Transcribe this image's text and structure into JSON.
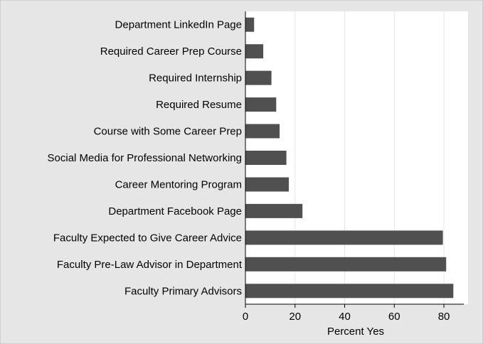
{
  "chart_data": {
    "type": "bar",
    "orientation": "horizontal",
    "categories": [
      "Department LinkedIn Page",
      "Required Career Prep Course",
      "Required Internship",
      "Required Resume",
      "Course with Some Career Prep",
      "Social Media for Professional Networking",
      "Career Mentoring Program",
      "Department Facebook Page",
      "Faculty Expected to Give Career Advice",
      "Faculty Pre-Law Advisor in Department",
      "Faculty Primary Advisors"
    ],
    "values": [
      3.5,
      7.2,
      10.5,
      12.4,
      13.8,
      16.5,
      17.5,
      23.0,
      79.6,
      80.9,
      83.8
    ],
    "title": "",
    "xlabel": "Percent Yes",
    "ylabel": "",
    "xlim": [
      0,
      88
    ],
    "xticks": [
      0,
      20,
      40,
      60,
      80
    ],
    "grid": "vertical",
    "legend": "none",
    "colors": {
      "bar": "#505050",
      "outer_background": "#e6e6e6",
      "plot_background": "#ffffff",
      "gridline": "#e6e6e6",
      "text": "#000000"
    }
  }
}
